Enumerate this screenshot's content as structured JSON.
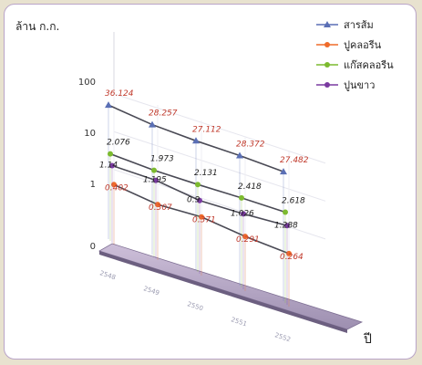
{
  "chart_data": {
    "type": "line",
    "ylabel": "ล้าน ก.ก.",
    "xlabel": "ปี",
    "y_scale": "log",
    "y_ticks": [
      "100",
      "10",
      "1",
      "0"
    ],
    "categories": [
      "2548",
      "2549",
      "2550",
      "2551",
      "2552"
    ],
    "legend_position": "top-right",
    "series": [
      {
        "name": "สารส้ม",
        "color": "#5a6fb5",
        "label_color": "#c0392b",
        "values": [
          36.124,
          28.257,
          27.112,
          28.372,
          27.482
        ],
        "labels": [
          "36.124",
          "28.257",
          "27.112",
          "28.372",
          "27.482"
        ]
      },
      {
        "name": "ปูคลอรีน",
        "color": "#ef6b2a",
        "label_color": "#c0392b",
        "values": [
          0.402,
          0.307,
          0.371,
          0.291,
          0.264
        ],
        "labels": [
          "0.402",
          "0.307",
          "0.371",
          "0.291",
          "0.264"
        ]
      },
      {
        "name": "แก๊สคลอรีน",
        "color": "#7cba2f",
        "label_color": "#222222",
        "values": [
          2.076,
          1.973,
          2.131,
          2.418,
          2.618
        ],
        "labels": [
          "2.076",
          "1.973",
          "2.131",
          "2.418",
          "2.618"
        ]
      },
      {
        "name": "ปูนขาว",
        "color": "#7a3aa0",
        "label_color": "#222222",
        "values": [
          1.14,
          1.195,
          0.9,
          1.026,
          1.288
        ],
        "labels": [
          "1.14",
          "1.195",
          "0.9",
          "1.026",
          "1.288"
        ]
      }
    ]
  }
}
